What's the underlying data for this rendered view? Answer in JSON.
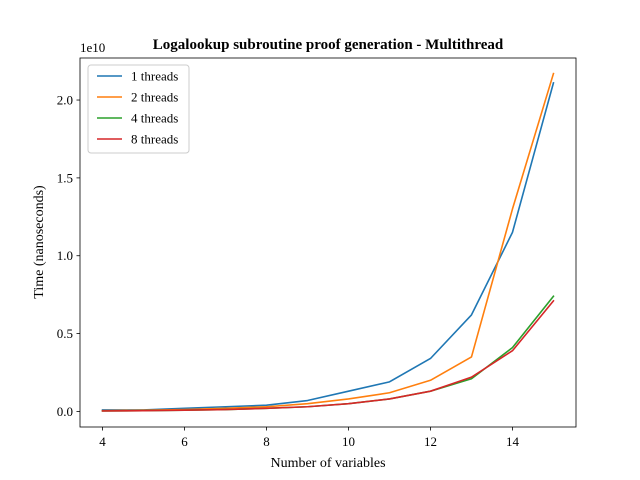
{
  "chart_data": {
    "type": "line",
    "title": "Logalookup subroutine proof generation - Multithread",
    "xlabel": "Number of variables",
    "ylabel": "Time (nanoseconds)",
    "y_offset_text": "1e10",
    "x": [
      4,
      5,
      6,
      7,
      8,
      9,
      10,
      11,
      12,
      13,
      14,
      15
    ],
    "xlim": [
      3.45,
      15.55
    ],
    "ylim": [
      -0.1,
      2.27
    ],
    "x_ticks": [
      4,
      6,
      8,
      10,
      12,
      14
    ],
    "x_tick_labels": [
      "4",
      "6",
      "8",
      "10",
      "12",
      "14"
    ],
    "y_ticks": [
      0.0,
      0.5,
      1.0,
      1.5,
      2.0
    ],
    "y_tick_labels": [
      "0.0",
      "0.5",
      "1.0",
      "1.5",
      "2.0"
    ],
    "legend_position": "top-left",
    "grid": false,
    "series": [
      {
        "name": "1 threads",
        "color": "#1f77b4",
        "values": [
          0.01,
          0.01,
          0.02,
          0.03,
          0.04,
          0.07,
          0.13,
          0.19,
          0.34,
          0.62,
          1.15,
          2.11
        ]
      },
      {
        "name": "2 threads",
        "color": "#ff7f0e",
        "values": [
          0.005,
          0.008,
          0.012,
          0.02,
          0.03,
          0.05,
          0.08,
          0.12,
          0.2,
          0.35,
          1.3,
          2.17
        ]
      },
      {
        "name": "4 threads",
        "color": "#2ca02c",
        "values": [
          0.003,
          0.005,
          0.008,
          0.012,
          0.02,
          0.03,
          0.05,
          0.08,
          0.13,
          0.21,
          0.41,
          0.74
        ]
      },
      {
        "name": "8 threads",
        "color": "#d62728",
        "values": [
          0.003,
          0.005,
          0.008,
          0.012,
          0.02,
          0.03,
          0.05,
          0.08,
          0.13,
          0.22,
          0.39,
          0.71
        ]
      }
    ]
  }
}
